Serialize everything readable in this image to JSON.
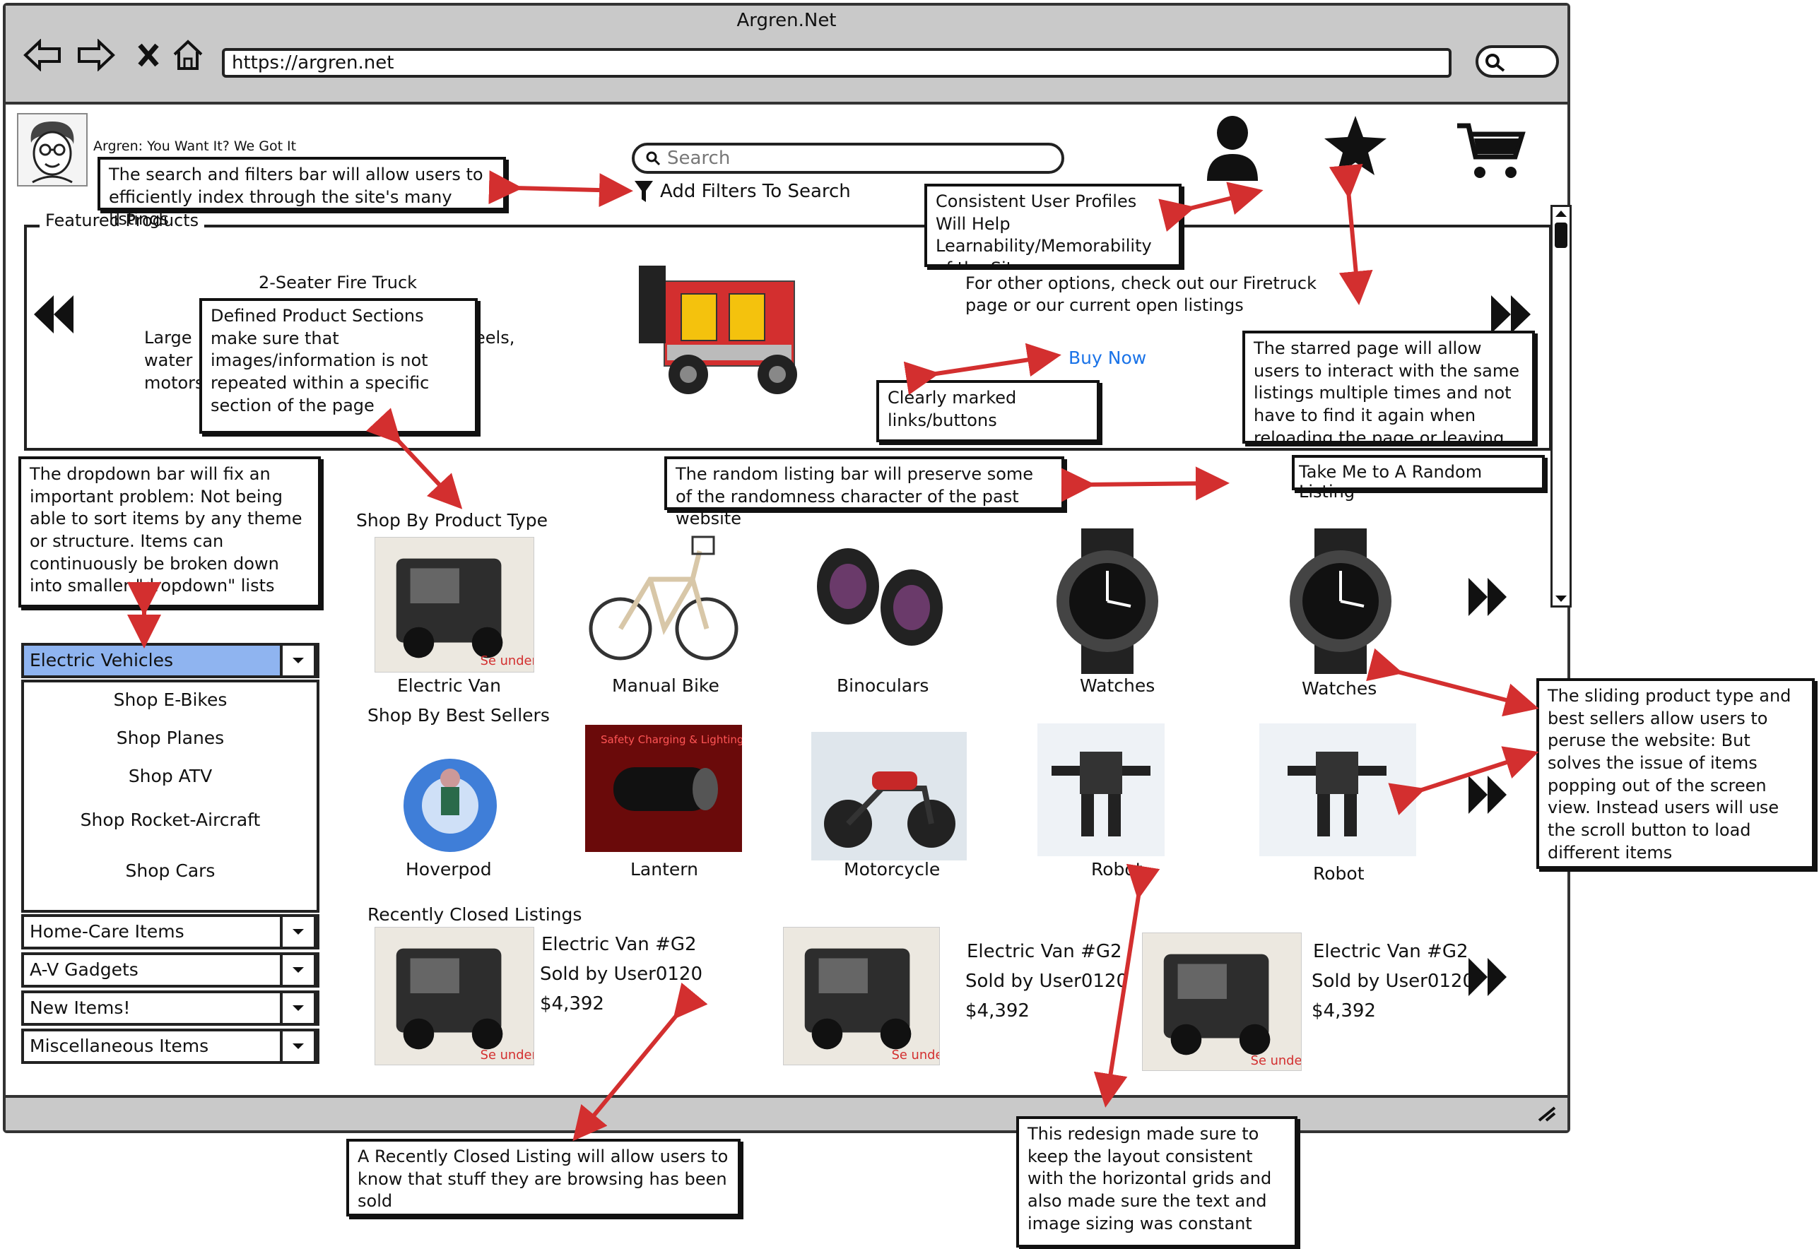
{
  "browser": {
    "title": "Argren.Net",
    "url": "https://argren.net"
  },
  "header": {
    "tagline": "Argren: You Want It? We Got It",
    "search_placeholder": "Search",
    "filters_label": "Add Filters To Search"
  },
  "featured": {
    "section_label": "Featured Products",
    "product_title": "2-Seater Fire Truck",
    "desc_fragments": [
      "Large",
      "water",
      "motors",
      "eels,"
    ],
    "side_text": "For other options, check out our Firetruck page or our current open listings",
    "buy_label": "Buy Now"
  },
  "random_button": "Take Me to A Random Listing",
  "sidebar": {
    "categories": [
      {
        "label": "Electric Vehicles"
      },
      {
        "label": "Home-Care Items"
      },
      {
        "label": "A-V Gadgets"
      },
      {
        "label": "New Items!"
      },
      {
        "label": "Miscellaneous Items"
      }
    ],
    "sub_items": [
      "Shop E-Bikes",
      "Shop Planes",
      "Shop ATV",
      "Shop Rocket-Aircraft",
      "Shop Cars"
    ]
  },
  "product_types": {
    "heading": "Shop By Product Type",
    "items": [
      "Electric Van",
      "Manual Bike",
      "Binoculars",
      "Watches",
      "Watches"
    ],
    "van_badge": "Se under"
  },
  "best_sellers": {
    "heading": "Shop By Best Sellers",
    "items": [
      "Hoverpod",
      "Lantern",
      "Motorcycle",
      "Robot",
      "Robot"
    ],
    "lantern_banner": "Safety Charging & Lighting"
  },
  "recently_closed": {
    "heading": "Recently Closed Listings",
    "listings": [
      {
        "name": "Electric Van #G2",
        "seller": "Sold by User0120",
        "price": "$4,392"
      },
      {
        "name": "Electric Van #G2",
        "seller": "Sold by User0120",
        "price": "$4,392"
      },
      {
        "name": "Electric Van #G2",
        "seller": "Sold by User0120",
        "price": "$4,392"
      }
    ]
  },
  "annotations": {
    "search": "The search and filters bar will allow users to efficiently index through the site's many listings",
    "profiles": "Consistent User Profiles Will Help Learnability/Memorability of the Site",
    "sections": "Defined Product Sections make sure that images/information is not repeated within a specific section of the page",
    "buttons": "Clearly marked links/buttons",
    "starred": "The starred page will allow users to interact with the same listings multiple times and not have to find it again when reloading the page or leaving the website",
    "dropdown": "The dropdown bar will fix an important problem: Not being able to sort items by any theme or structure. Items can continuously be broken down into smaller \"dropdown\" lists",
    "random": "The random listing bar will preserve some of the randomness character of the past website",
    "sliding": "The sliding product type and best sellers allow users to peruse the website: But solves the issue of items popping out of the screen view. Instead users will use the scroll button to load different items",
    "closed": "A Recently Closed Listing will allow users to know that stuff they are browsing has been sold",
    "redesign": "This redesign made sure to keep the layout consistent with the horizontal grids and also made sure the text and image sizing was constant"
  },
  "colors": {
    "accent_red": "#d32f2f",
    "dropdown_selected": "#8fb4f0",
    "link_blue": "#1a73e8",
    "chrome_gray": "#c9c9c9"
  }
}
